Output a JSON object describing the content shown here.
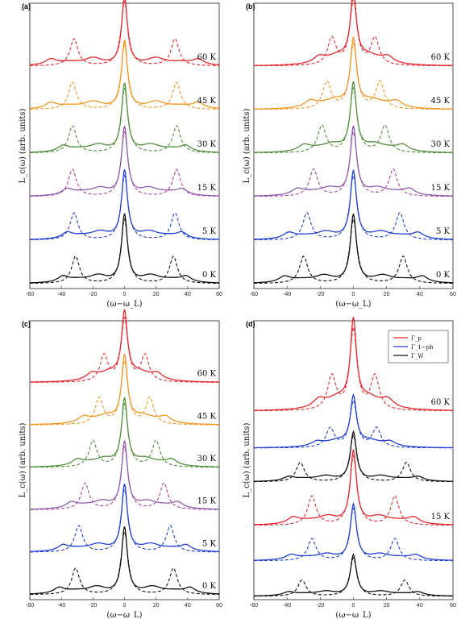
{
  "colors": {
    "red": "#e8262b",
    "orange": "#f5941d",
    "green": "#4f8f3a",
    "purple": "#8a5bb0",
    "blue": "#1f3fd6",
    "black": "#111111",
    "brown": "#9a6b3c",
    "steel": "#5a7da0",
    "magenta": "#b0409a"
  },
  "chart_data": [
    {
      "panel": "(a)",
      "type": "line",
      "xlabel": "(ω−ω_L)",
      "ylabel": "L_c(ω) (arb. units)",
      "xlim": [
        -60,
        60
      ],
      "xticks": [
        "-60",
        "-40",
        "-20",
        "0",
        "20",
        "40",
        "60"
      ],
      "series": [
        {
          "label": "60 K",
          "solid_color": "red",
          "dashed_color": "red",
          "side": 32,
          "shoulder": 36,
          "center": 1.0
        },
        {
          "label": "45 K",
          "solid_color": "orange",
          "dashed_color": "orange",
          "side": 33,
          "shoulder": 36,
          "center": 1.0
        },
        {
          "label": "30 K",
          "solid_color": "green",
          "dashed_color": "green",
          "side": 33,
          "shoulder": 30,
          "center": 1.0
        },
        {
          "label": "15 K",
          "solid_color": "purple",
          "dashed_color": "magenta",
          "side": 33,
          "shoulder": 28,
          "center": 1.0
        },
        {
          "label": "5 K",
          "solid_color": "blue",
          "dashed_color": "blue",
          "side": 32,
          "shoulder": 28,
          "center": 1.0
        },
        {
          "label": "0 K",
          "solid_color": "black",
          "dashed_color": "black",
          "side": 31,
          "shoulder": 30,
          "center": 1.0
        }
      ]
    },
    {
      "panel": "(b)",
      "type": "line",
      "xlabel": "(ω−ω_L)",
      "ylabel": "L_c(ω) (arb. units)",
      "xlim": [
        -60,
        60
      ],
      "xticks": [
        "-60",
        "-40",
        "-20",
        "0",
        "20",
        "40",
        "60"
      ],
      "series": [
        {
          "label": "60 K",
          "solid_color": "red",
          "dashed_color": "red",
          "side": 13,
          "shoulder": 16,
          "center": 1.0
        },
        {
          "label": "45 K",
          "solid_color": "orange",
          "dashed_color": "orange",
          "side": 16,
          "shoulder": 20,
          "center": 1.0
        },
        {
          "label": "30 K",
          "solid_color": "green",
          "dashed_color": "green",
          "side": 19,
          "shoulder": 23,
          "center": 1.0
        },
        {
          "label": "15 K",
          "solid_color": "purple",
          "dashed_color": "magenta",
          "side": 24,
          "shoulder": 26,
          "center": 1.0
        },
        {
          "label": "5 K",
          "solid_color": "blue",
          "dashed_color": "blue",
          "side": 28,
          "shoulder": 30,
          "center": 1.0
        },
        {
          "label": "0 K",
          "solid_color": "black",
          "dashed_color": "black",
          "side": 30,
          "shoulder": 32,
          "center": 1.0
        }
      ]
    },
    {
      "panel": "(c)",
      "type": "line",
      "xlabel": "(ω−ω_L)",
      "ylabel": "L_c(ω) (arb. units)",
      "xlim": [
        -60,
        60
      ],
      "xticks": [
        "-60",
        "-40",
        "-20",
        "0",
        "20",
        "40",
        "60"
      ],
      "series": [
        {
          "label": "60 K",
          "solid_color": "red",
          "dashed_color": "red",
          "side": 13,
          "shoulder": 16,
          "center": 1.0
        },
        {
          "label": "45 K",
          "solid_color": "orange",
          "dashed_color": "orange",
          "side": 16,
          "shoulder": 20,
          "center": 1.0
        },
        {
          "label": "30 K",
          "solid_color": "green",
          "dashed_color": "green",
          "side": 20,
          "shoulder": 23,
          "center": 1.0
        },
        {
          "label": "15 K",
          "solid_color": "purple",
          "dashed_color": "magenta",
          "side": 25,
          "shoulder": 26,
          "center": 1.0
        },
        {
          "label": "5 K",
          "solid_color": "blue",
          "dashed_color": "blue",
          "side": 29,
          "shoulder": 30,
          "center": 1.0
        },
        {
          "label": "0 K",
          "solid_color": "black",
          "dashed_color": "black",
          "side": 31,
          "shoulder": 32,
          "center": 1.0
        }
      ]
    },
    {
      "panel": "(d)",
      "type": "line",
      "xlabel": "(ω−ω_L)",
      "ylabel": "L_c(ω) (arb. units)",
      "xlim": [
        -60,
        60
      ],
      "xticks": [
        "-60",
        "-40",
        "-20",
        "0",
        "20",
        "40",
        "60"
      ],
      "legend": {
        "placement": "top-right",
        "entries": [
          {
            "label": "Γ_p",
            "color": "red"
          },
          {
            "label": "Γ_1−ph",
            "color": "blue"
          },
          {
            "label": "Γ_W",
            "color": "black"
          }
        ]
      },
      "groups": [
        {
          "label": "60 K",
          "series": [
            {
              "color": "red",
              "side": 13,
              "shoulder": 16,
              "center": 1.0
            },
            {
              "color": "blue",
              "side": 14,
              "shoulder": 17,
              "center": 1.0
            },
            {
              "color": "black",
              "side": 32,
              "shoulder": 30,
              "center": 1.0
            }
          ]
        },
        {
          "label": "15 K",
          "series": [
            {
              "color": "red",
              "side": 25,
              "shoulder": 28,
              "center": 1.0
            },
            {
              "color": "blue",
              "side": 25,
              "shoulder": 29,
              "center": 1.0
            },
            {
              "color": "black",
              "side": 31,
              "shoulder": 30,
              "center": 1.0
            }
          ]
        }
      ]
    }
  ]
}
